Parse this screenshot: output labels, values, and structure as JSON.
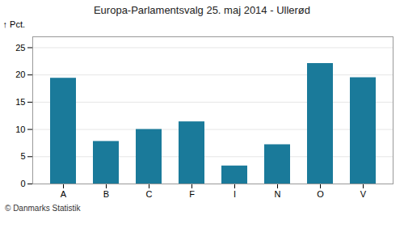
{
  "chart_data": {
    "type": "bar",
    "title": "Europa-Parlamentsvalg 25. maj 2014 - Ullerød",
    "categories": [
      "A",
      "B",
      "C",
      "F",
      "I",
      "N",
      "O",
      "V"
    ],
    "values": [
      19.4,
      7.8,
      10.0,
      11.4,
      3.3,
      7.2,
      22.1,
      19.5
    ],
    "color": "#1a7a9a",
    "ylabel": "Pct.",
    "ylim": [
      0,
      27
    ],
    "yticks": [
      0,
      5,
      10,
      15,
      20,
      25
    ],
    "grid": true,
    "caption": "© Danmarks Statistik"
  }
}
